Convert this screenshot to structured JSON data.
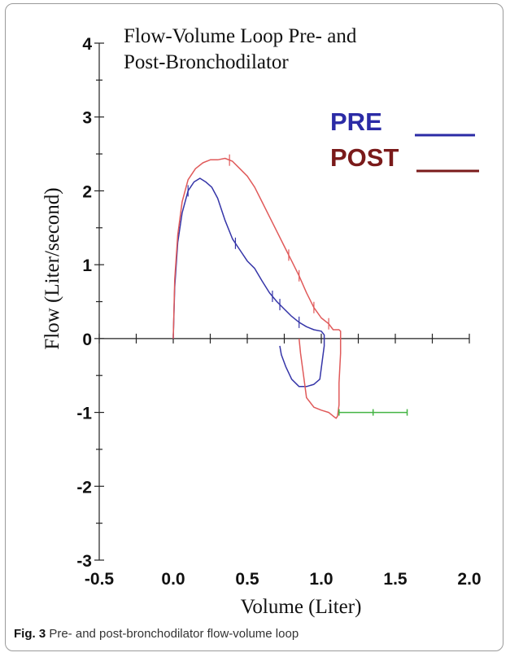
{
  "caption": {
    "label": "Fig. 3",
    "text": "Pre- and post-bronchodilator flow-volume loop"
  },
  "chart_data": {
    "type": "line",
    "title_lines": [
      "Flow-Volume Loop Pre- and",
      "Post-Bronchodilator"
    ],
    "xlabel": "Volume (Liter)",
    "ylabel": "Flow (Liter/second)",
    "xlim": [
      -0.5,
      2.0
    ],
    "ylim": [
      -3,
      4
    ],
    "xticks": [
      "-0.5",
      "0.0",
      "0.5",
      "1.0",
      "1.5",
      "2.0"
    ],
    "xtick_values": [
      -0.5,
      0,
      0.5,
      1.0,
      1.5,
      2.0
    ],
    "yticks": [
      "4",
      "3",
      "2",
      "1",
      "0",
      "-1",
      "-2",
      "-3"
    ],
    "ytick_values": [
      4,
      3,
      2,
      1,
      0,
      -1,
      -2,
      -3
    ],
    "legend": {
      "placement": "top-right"
    },
    "series": [
      {
        "name": "PRE",
        "color": "#3535a8",
        "legend_color": "#2b2ba6",
        "x": [
          0.0,
          0.01,
          0.03,
          0.06,
          0.1,
          0.14,
          0.18,
          0.22,
          0.26,
          0.3,
          0.35,
          0.4,
          0.45,
          0.5,
          0.55,
          0.6,
          0.65,
          0.7,
          0.75,
          0.8,
          0.85,
          0.9,
          0.95,
          1.0,
          1.02,
          1.02,
          1.01,
          1.0,
          0.99,
          0.95,
          0.9,
          0.85,
          0.8,
          0.76,
          0.73,
          0.72
        ],
        "y": [
          0.0,
          0.7,
          1.3,
          1.7,
          2.0,
          2.12,
          2.17,
          2.12,
          2.05,
          1.9,
          1.6,
          1.35,
          1.2,
          1.05,
          0.95,
          0.78,
          0.62,
          0.5,
          0.4,
          0.3,
          0.22,
          0.16,
          0.12,
          0.1,
          0.05,
          -0.1,
          -0.25,
          -0.4,
          -0.55,
          -0.62,
          -0.65,
          -0.65,
          -0.55,
          -0.38,
          -0.22,
          -0.1
        ]
      },
      {
        "name": "POST",
        "color": "#e05a5a",
        "legend_color": "#7a1a1a",
        "x": [
          0.0,
          0.01,
          0.03,
          0.06,
          0.1,
          0.15,
          0.2,
          0.25,
          0.3,
          0.35,
          0.4,
          0.45,
          0.5,
          0.55,
          0.6,
          0.65,
          0.7,
          0.75,
          0.8,
          0.85,
          0.9,
          0.95,
          1.0,
          1.05,
          1.08,
          1.12,
          1.13,
          1.13,
          1.12,
          1.12,
          1.11,
          1.1,
          1.08,
          1.05,
          1.0,
          0.95,
          0.9,
          0.88,
          0.86,
          0.85
        ],
        "y": [
          0.0,
          0.8,
          1.4,
          1.85,
          2.15,
          2.3,
          2.38,
          2.42,
          2.42,
          2.44,
          2.4,
          2.3,
          2.2,
          2.05,
          1.85,
          1.65,
          1.45,
          1.25,
          1.05,
          0.85,
          0.62,
          0.42,
          0.28,
          0.2,
          0.12,
          0.12,
          0.1,
          -0.2,
          -0.6,
          -0.9,
          -1.05,
          -1.08,
          -1.05,
          -1.0,
          -0.97,
          -0.93,
          -0.8,
          -0.5,
          -0.2,
          0.0
        ]
      },
      {
        "name": "",
        "color": "#44b444",
        "x": [
          1.12,
          1.35,
          1.58
        ],
        "y": [
          -1.0,
          -1.0,
          -1.0
        ]
      }
    ]
  }
}
